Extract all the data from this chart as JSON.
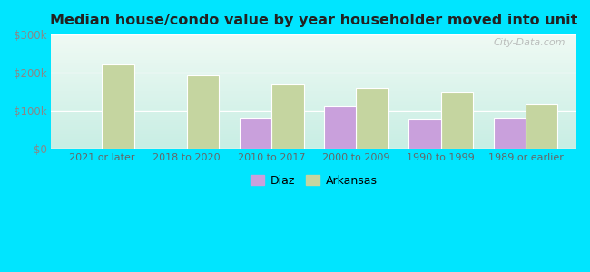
{
  "title": "Median house/condo value by year householder moved into unit",
  "categories": [
    "2021 or later",
    "2018 to 2020",
    "2010 to 2017",
    "2000 to 2009",
    "1990 to 1999",
    "1989 or earlier"
  ],
  "diaz_values": [
    null,
    null,
    82000,
    112000,
    80000,
    82000
  ],
  "arkansas_values": [
    222000,
    193000,
    170000,
    160000,
    148000,
    118000
  ],
  "diaz_color": "#c9a0dc",
  "arkansas_color": "#c5d5a0",
  "background_outer": "#00e5ff",
  "ylim": [
    0,
    300000
  ],
  "yticks": [
    0,
    100000,
    200000,
    300000
  ],
  "ytick_labels": [
    "$0",
    "$100k",
    "$200k",
    "$300k"
  ],
  "bar_width": 0.38,
  "legend_labels": [
    "Diaz",
    "Arkansas"
  ],
  "watermark": "City-Data.com",
  "grad_top": "#f0faf4",
  "grad_bottom": "#c8eee4"
}
